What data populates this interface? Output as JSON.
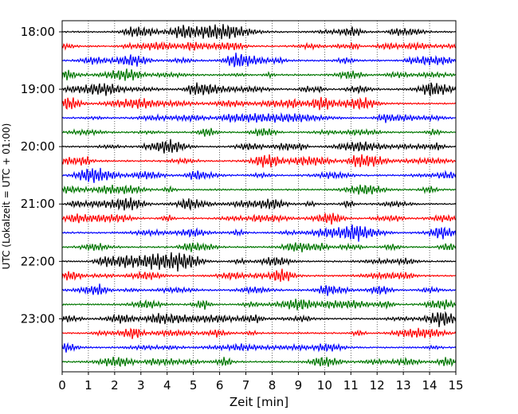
{
  "chart_data": {
    "type": "line",
    "title": "",
    "xlabel": "Zeit  [min]",
    "ylabel": "UTC (Lokalzeit = UTC + 01:00)",
    "xlim": [
      0,
      15
    ],
    "x_ticks": [
      "0",
      "1",
      "2",
      "3",
      "4",
      "5",
      "6",
      "7",
      "8",
      "9",
      "10",
      "11",
      "12",
      "13",
      "14",
      "15"
    ],
    "y_ticks": [
      "18:00",
      "19:00",
      "20:00",
      "21:00",
      "22:00",
      "23:00"
    ],
    "row_start": "18:00",
    "row_interval_minutes": 15,
    "row_count": 24,
    "trace_colors": [
      "#000000",
      "#ff0000",
      "#0000ff",
      "#007700"
    ],
    "grid": "vertical dotted at each minute",
    "legend": "none"
  }
}
